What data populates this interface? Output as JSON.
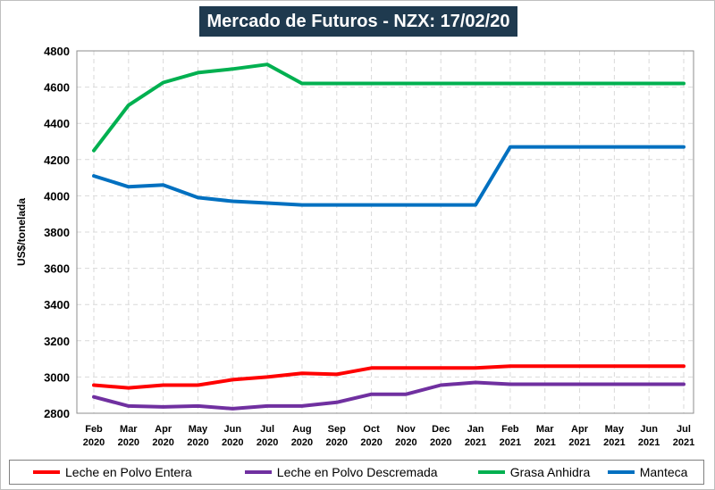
{
  "chart_data": {
    "type": "line",
    "title": "Mercado de Futuros - NZX: 17/02/20",
    "ylabel": "US$/tonelada",
    "xlabel": "",
    "ylim": [
      2800,
      4800
    ],
    "yticks": [
      2800,
      3000,
      3200,
      3400,
      3600,
      3800,
      4000,
      4200,
      4400,
      4600,
      4800
    ],
    "grid": true,
    "legend_position": "bottom",
    "categories": [
      {
        "month": "Feb",
        "year": "2020"
      },
      {
        "month": "Mar",
        "year": "2020"
      },
      {
        "month": "Apr",
        "year": "2020"
      },
      {
        "month": "May",
        "year": "2020"
      },
      {
        "month": "Jun",
        "year": "2020"
      },
      {
        "month": "Jul",
        "year": "2020"
      },
      {
        "month": "Aug",
        "year": "2020"
      },
      {
        "month": "Sep",
        "year": "2020"
      },
      {
        "month": "Oct",
        "year": "2020"
      },
      {
        "month": "Nov",
        "year": "2020"
      },
      {
        "month": "Dec",
        "year": "2020"
      },
      {
        "month": "Jan",
        "year": "2021"
      },
      {
        "month": "Feb",
        "year": "2021"
      },
      {
        "month": "Mar",
        "year": "2021"
      },
      {
        "month": "Apr",
        "year": "2021"
      },
      {
        "month": "May",
        "year": "2021"
      },
      {
        "month": "Jun",
        "year": "2021"
      },
      {
        "month": "Jul",
        "year": "2021"
      }
    ],
    "series": [
      {
        "name": "Leche en Polvo Entera",
        "color": "#ff0000",
        "values": [
          2955,
          2940,
          2955,
          2955,
          2985,
          3000,
          3020,
          3015,
          3050,
          3050,
          3050,
          3050,
          3060,
          3060,
          3060,
          3060,
          3060,
          3060
        ]
      },
      {
        "name": "Leche en Polvo Descremada",
        "color": "#7030a0",
        "values": [
          2890,
          2840,
          2835,
          2840,
          2825,
          2840,
          2840,
          2860,
          2905,
          2905,
          2955,
          2970,
          2960,
          2960,
          2960,
          2960,
          2960,
          2960
        ]
      },
      {
        "name": "Grasa Anhidra",
        "color": "#00b050",
        "values": [
          4250,
          4500,
          4625,
          4680,
          4700,
          4725,
          4620,
          4620,
          4620,
          4620,
          4620,
          4620,
          4620,
          4620,
          4620,
          4620,
          4620,
          4620
        ]
      },
      {
        "name": "Manteca",
        "color": "#0070c0",
        "values": [
          4110,
          4050,
          4060,
          3990,
          3970,
          3960,
          3950,
          3950,
          3950,
          3950,
          3950,
          3950,
          4270,
          4270,
          4270,
          4270,
          4270,
          4270
        ]
      }
    ]
  }
}
